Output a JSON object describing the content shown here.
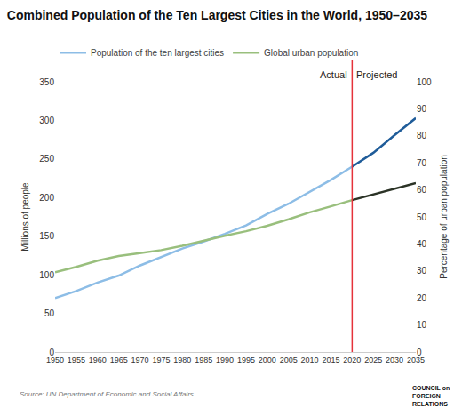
{
  "chart_data": {
    "type": "line",
    "title": "Combined Population of the Ten Largest Cities in the World, 1950–2035",
    "source": "Source: UN Department of Economic and Social Affairs.",
    "logo": [
      "COUNCIL on",
      "FOREIGN",
      "RELATIONS"
    ],
    "ylabel": "Millions of people",
    "y2label": "Percentage of urban population",
    "x": [
      1950,
      1955,
      1960,
      1965,
      1970,
      1975,
      1980,
      1985,
      1990,
      1995,
      2000,
      2005,
      2010,
      2015,
      2020,
      2025,
      2030,
      2035
    ],
    "xlim": [
      1950,
      2035
    ],
    "xticks": [
      1950,
      1955,
      1960,
      1965,
      1970,
      1975,
      1980,
      1985,
      1990,
      1995,
      2000,
      2005,
      2010,
      2015,
      2020,
      2025,
      2030,
      2035
    ],
    "ylim": [
      0,
      350
    ],
    "yticks": [
      0,
      50,
      100,
      150,
      200,
      250,
      300,
      350
    ],
    "y2lim": [
      0,
      100
    ],
    "y2ticks": [
      0,
      10,
      20,
      30,
      40,
      50,
      60,
      70,
      80,
      90,
      100
    ],
    "grid": false,
    "legend": "top left",
    "annotations": [
      {
        "text": "Actual",
        "x": 2020
      },
      {
        "text": "Projected",
        "x": 2020
      }
    ],
    "vertical_line": {
      "x": 2020,
      "color": "#e5323b"
    },
    "series": [
      {
        "name": "Population of the ten largest cities",
        "colors": [
          "#8dbde6",
          "#8dbde6",
          "#8dbde6",
          "#8dbde6",
          "#8dbde6",
          "#8dbde6",
          "#8dbde6",
          "#8dbde6",
          "#8dbde6",
          "#8dbde6",
          "#8dbde6",
          "#8dbde6",
          "#8dbde6",
          "#8dbde6",
          "#8dbde6",
          "#1f5c99",
          "#1f5c99",
          "#1f5c99"
        ],
        "values": [
          70,
          79,
          90,
          99,
          112,
          123,
          134,
          143,
          153,
          164,
          179,
          192,
          208,
          223,
          240,
          258,
          281,
          303
        ]
      },
      {
        "name": "Global urban population",
        "axis": "y2",
        "colors": [
          "#99bf7d",
          "#99bf7d",
          "#99bf7d",
          "#99bf7d",
          "#99bf7d",
          "#99bf7d",
          "#99bf7d",
          "#99bf7d",
          "#99bf7d",
          "#99bf7d",
          "#99bf7d",
          "#99bf7d",
          "#99bf7d",
          "#99bf7d",
          "#99bf7d",
          "#2b3326",
          "#2b3326",
          "#2b3326"
        ],
        "values": [
          29.5,
          31.5,
          33.8,
          35.5,
          36.6,
          37.7,
          39.3,
          41.2,
          43.0,
          44.7,
          46.7,
          49.1,
          51.7,
          53.9,
          56.2,
          58.3,
          60.4,
          62.5
        ]
      }
    ]
  }
}
